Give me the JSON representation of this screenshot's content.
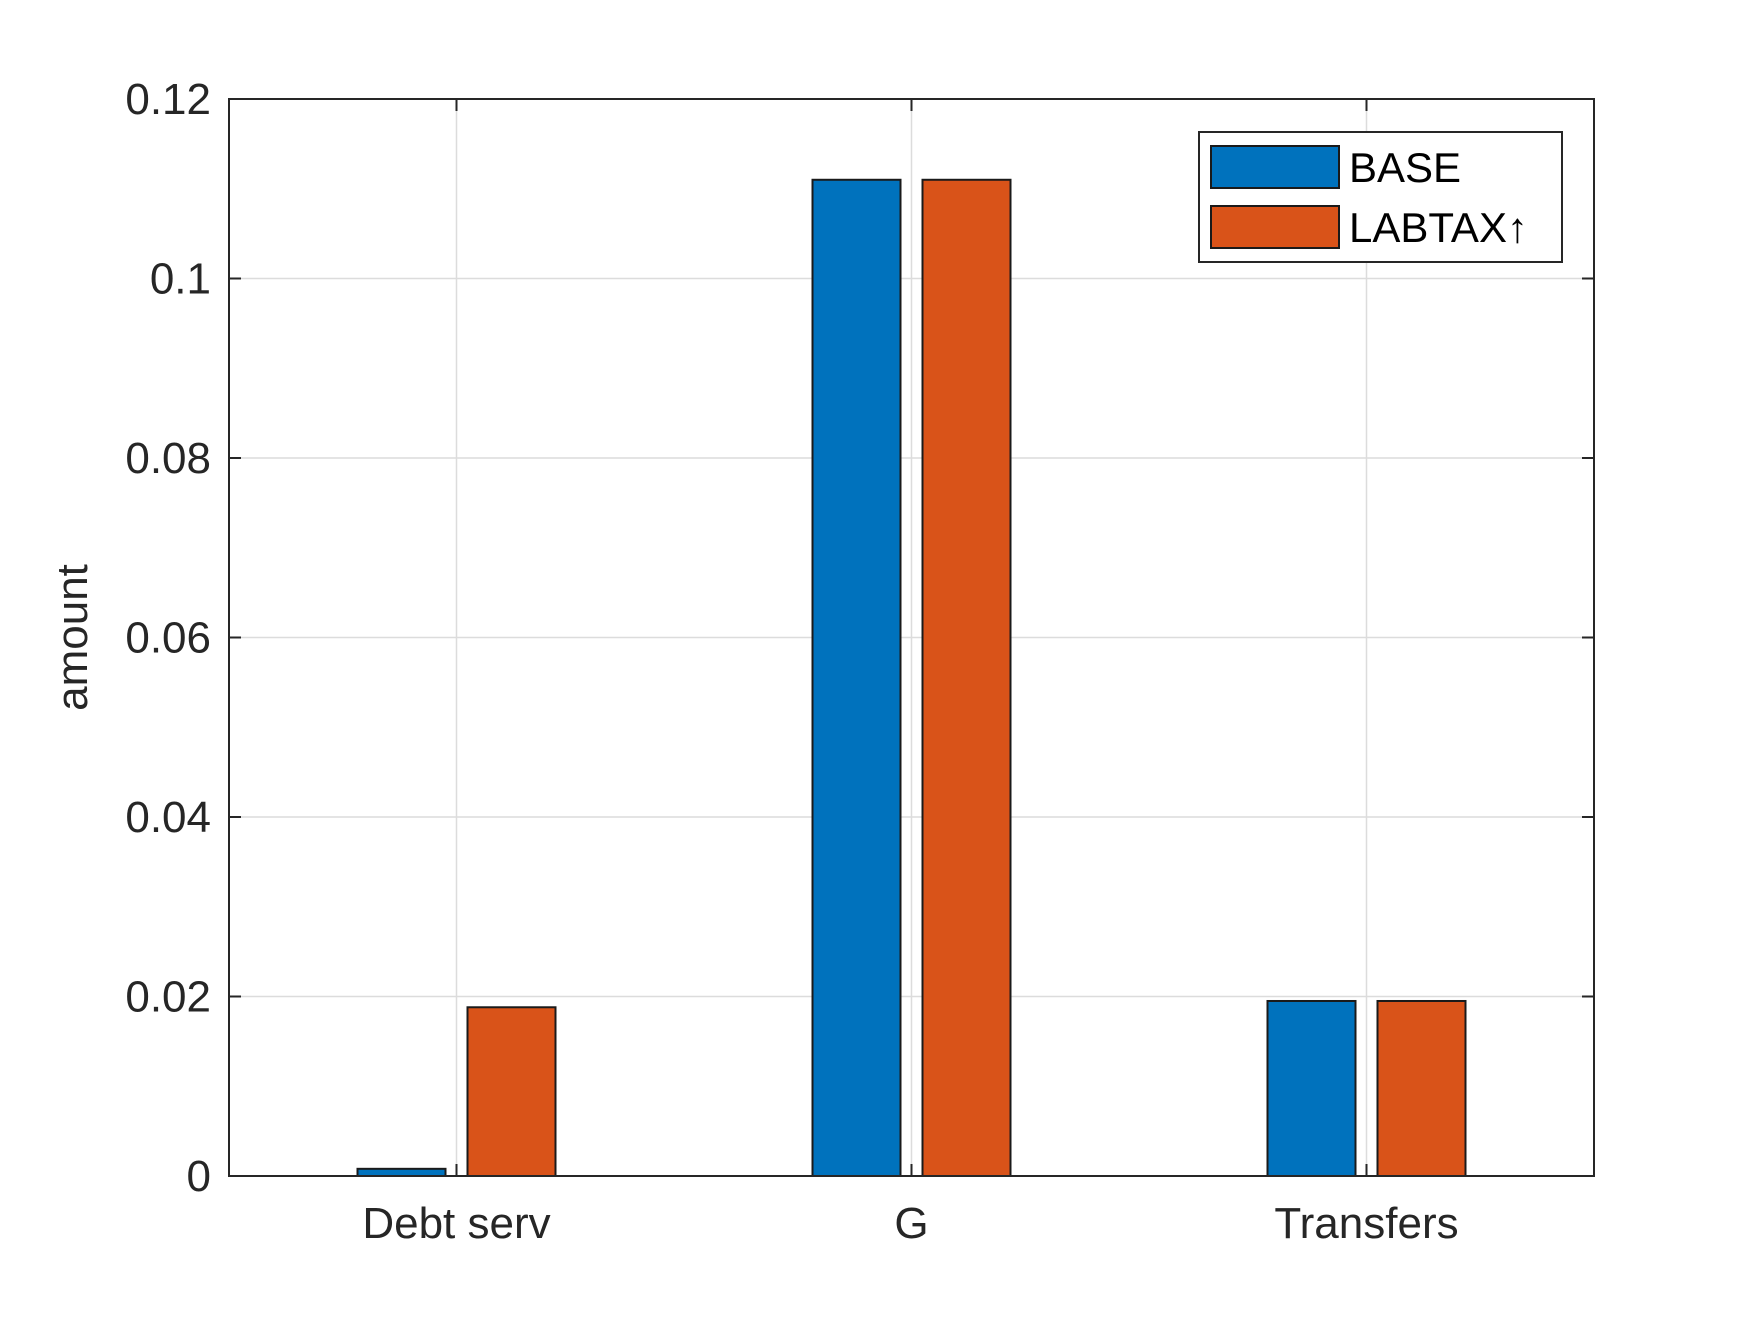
{
  "chart_data": {
    "type": "bar",
    "title": "",
    "xlabel": "",
    "ylabel": "amount",
    "categories": [
      "Debt serv",
      "G",
      "Transfers"
    ],
    "series": [
      {
        "name": "BASE",
        "color": "#0072BD",
        "values": [
          0.0008,
          0.111,
          0.0195
        ]
      },
      {
        "name": "LABTAX↑",
        "color": "#D95319",
        "values": [
          0.0188,
          0.111,
          0.0195
        ]
      }
    ],
    "ylim": [
      0,
      0.12
    ],
    "yticks": [
      "0",
      "0.02",
      "0.04",
      "0.06",
      "0.08",
      "0.1",
      "0.12"
    ],
    "grid": true,
    "legend_position": "top-right"
  }
}
